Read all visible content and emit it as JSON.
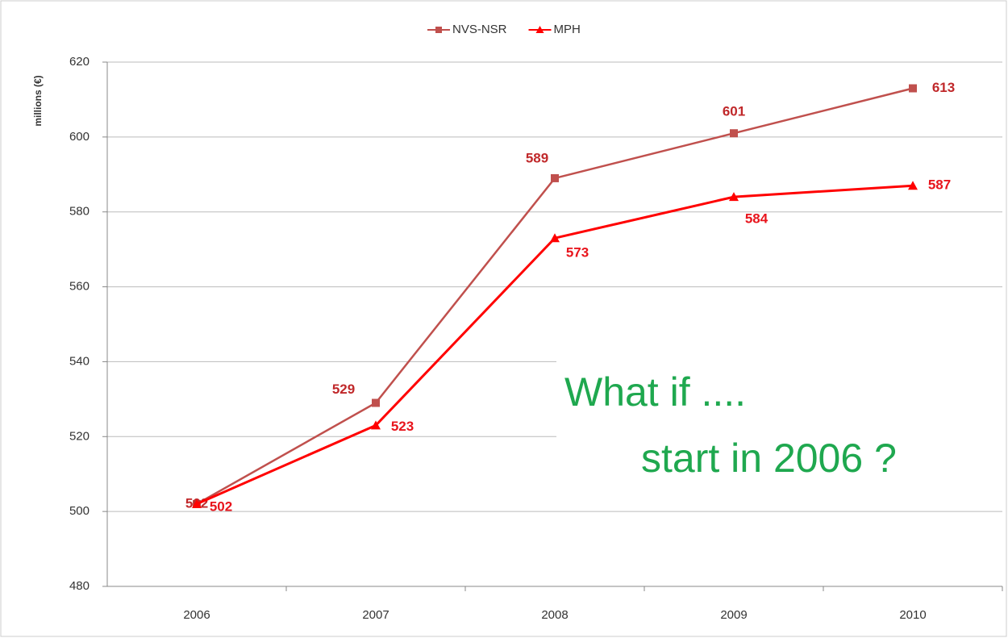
{
  "chart_data": {
    "type": "line",
    "y_label": "millions (€)",
    "categories": [
      "2006",
      "2007",
      "2008",
      "2009",
      "2010"
    ],
    "series": [
      {
        "name": "NVS-NSR",
        "color": "#c0504d",
        "values": [
          502,
          529,
          589,
          601,
          613
        ]
      },
      {
        "name": "MPH",
        "color": "#ff0000",
        "values": [
          502,
          523,
          573,
          584,
          587
        ]
      }
    ],
    "ylim": [
      480,
      620
    ],
    "yticks": [
      480,
      500,
      520,
      540,
      560,
      580,
      600,
      620
    ],
    "grid": true,
    "legend": "top",
    "annotation": [
      "What if ....",
      "start in 2006 ?"
    ]
  }
}
